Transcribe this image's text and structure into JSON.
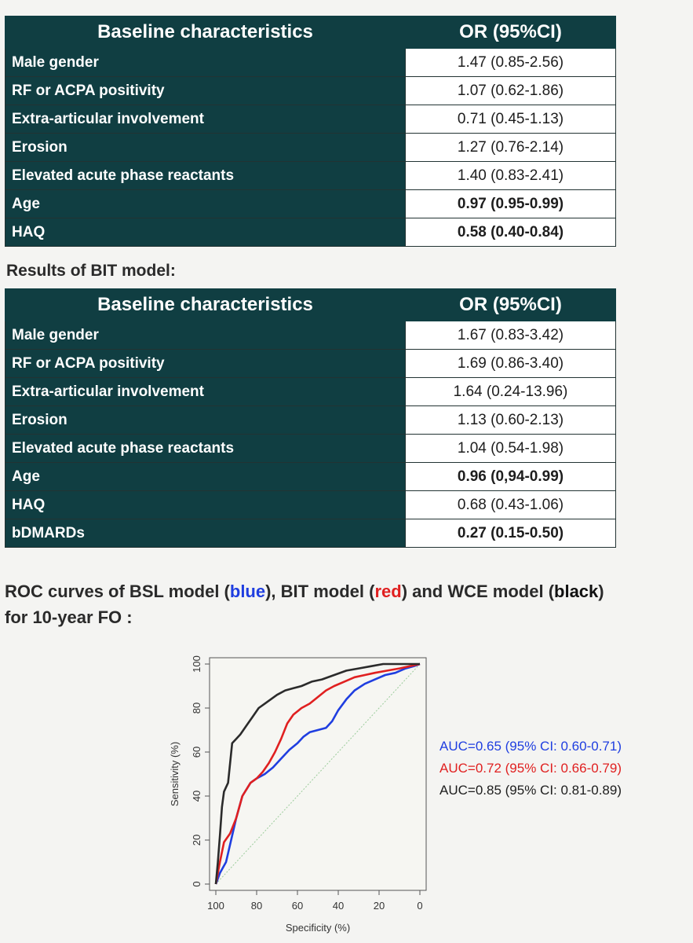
{
  "table1": {
    "header": [
      "Baseline characteristics",
      "OR (95%CI)"
    ],
    "rows": [
      {
        "label": "Male gender",
        "value": "1.47 (0.85-2.56)",
        "bold": false
      },
      {
        "label": "RF or ACPA positivity",
        "value": "1.07 (0.62-1.86)",
        "bold": false
      },
      {
        "label": "Extra-articular involvement",
        "value": "0.71 (0.45-1.13)",
        "bold": false
      },
      {
        "label": "Erosion",
        "value": "1.27 (0.76-2.14)",
        "bold": false
      },
      {
        "label": "Elevated acute phase reactants",
        "value": "1.40 (0.83-2.41)",
        "bold": false
      },
      {
        "label": "Age",
        "value": "0.97 (0.95-0.99)",
        "bold": true
      },
      {
        "label": "HAQ",
        "value": "0.58 (0.40-0.84)",
        "bold": true
      }
    ]
  },
  "bit_heading": "Results of BIT model:",
  "table2": {
    "header": [
      "Baseline characteristics",
      "OR (95%CI)"
    ],
    "rows": [
      {
        "label": "Male gender",
        "value": "1.67 (0.83-3.42)",
        "bold": false
      },
      {
        "label": "RF or ACPA positivity",
        "value": "1.69 (0.86-3.40)",
        "bold": false
      },
      {
        "label": "Extra-articular involvement",
        "value": "1.64 (0.24-13.96)",
        "bold": false
      },
      {
        "label": "Erosion",
        "value": "1.13 (0.60-2.13)",
        "bold": false
      },
      {
        "label": "Elevated acute phase reactants",
        "value": "1.04 (0.54-1.98)",
        "bold": false
      },
      {
        "label": "Age",
        "value": "0.96 (0,94-0.99)",
        "bold": true
      },
      {
        "label": "HAQ",
        "value": "0.68 (0.43-1.06)",
        "bold": false
      },
      {
        "label": "bDMARDs",
        "value": "0.27 (0.15-0.50)",
        "bold": true
      }
    ]
  },
  "roc_heading": {
    "part1": "ROC curves of BSL model (",
    "blue": "blue",
    "part2": "), BIT model (",
    "red": "red",
    "part3": ") and WCE model (",
    "black": "black",
    "part4": ")",
    "line2": "for 10-year FO :"
  },
  "colors": {
    "header_bg": "#103e42",
    "blue": "#1f3ee0",
    "red": "#e02020",
    "black": "#2b2b2b"
  },
  "chart_data": {
    "type": "line",
    "xlabel": "Specificity (%)",
    "ylabel": "Sensitivity (%)",
    "xlim": [
      100,
      0
    ],
    "ylim": [
      0,
      100
    ],
    "x_ticks": [
      100,
      80,
      60,
      40,
      20,
      0
    ],
    "y_ticks": [
      0,
      20,
      40,
      60,
      80,
      100
    ],
    "diagonal_reference": true,
    "series": [
      {
        "color": "blue",
        "points": [
          [
            100,
            0
          ],
          [
            98,
            5
          ],
          [
            95,
            10
          ],
          [
            93,
            18
          ],
          [
            90,
            30
          ],
          [
            87,
            40
          ],
          [
            83,
            46
          ],
          [
            80,
            48
          ],
          [
            76,
            50
          ],
          [
            72,
            53
          ],
          [
            68,
            57
          ],
          [
            64,
            61
          ],
          [
            60,
            64
          ],
          [
            57,
            67
          ],
          [
            54,
            69
          ],
          [
            50,
            70
          ],
          [
            46,
            71
          ],
          [
            43,
            74
          ],
          [
            40,
            79
          ],
          [
            36,
            84
          ],
          [
            32,
            88
          ],
          [
            27,
            91
          ],
          [
            22,
            93
          ],
          [
            17,
            95
          ],
          [
            12,
            96
          ],
          [
            7,
            98
          ],
          [
            3,
            99
          ],
          [
            0,
            100
          ]
        ]
      },
      {
        "color": "red",
        "points": [
          [
            100,
            0
          ],
          [
            98,
            10
          ],
          [
            96,
            19
          ],
          [
            93,
            23
          ],
          [
            90,
            30
          ],
          [
            87,
            40
          ],
          [
            83,
            46
          ],
          [
            80,
            48
          ],
          [
            77,
            51
          ],
          [
            74,
            55
          ],
          [
            71,
            60
          ],
          [
            68,
            66
          ],
          [
            65,
            73
          ],
          [
            62,
            77
          ],
          [
            58,
            80
          ],
          [
            54,
            82
          ],
          [
            50,
            85
          ],
          [
            46,
            88
          ],
          [
            42,
            90
          ],
          [
            37,
            92
          ],
          [
            32,
            94
          ],
          [
            27,
            95
          ],
          [
            22,
            96
          ],
          [
            16,
            97
          ],
          [
            10,
            98
          ],
          [
            5,
            99
          ],
          [
            0,
            100
          ]
        ]
      },
      {
        "color": "black",
        "points": [
          [
            100,
            0
          ],
          [
            99,
            10
          ],
          [
            98,
            22
          ],
          [
            97,
            35
          ],
          [
            96,
            42
          ],
          [
            94,
            46
          ],
          [
            93,
            55
          ],
          [
            92,
            64
          ],
          [
            90,
            66
          ],
          [
            88,
            68
          ],
          [
            85,
            72
          ],
          [
            82,
            76
          ],
          [
            79,
            80
          ],
          [
            76,
            82
          ],
          [
            73,
            84
          ],
          [
            70,
            86
          ],
          [
            66,
            88
          ],
          [
            62,
            89
          ],
          [
            58,
            90
          ],
          [
            53,
            92
          ],
          [
            48,
            93
          ],
          [
            42,
            95
          ],
          [
            36,
            97
          ],
          [
            30,
            98
          ],
          [
            24,
            99
          ],
          [
            18,
            100
          ],
          [
            12,
            100
          ],
          [
            6,
            100
          ],
          [
            0,
            100
          ]
        ]
      }
    ],
    "auc_labels": [
      {
        "text": "AUC=0.65 (95% CI: 0.60-0.71)",
        "color": "blue"
      },
      {
        "text": "AUC=0.72 (95% CI: 0.66-0.79)",
        "color": "red"
      },
      {
        "text": "AUC=0.85 (95% CI: 0.81-0.89)",
        "color": "black"
      }
    ]
  }
}
